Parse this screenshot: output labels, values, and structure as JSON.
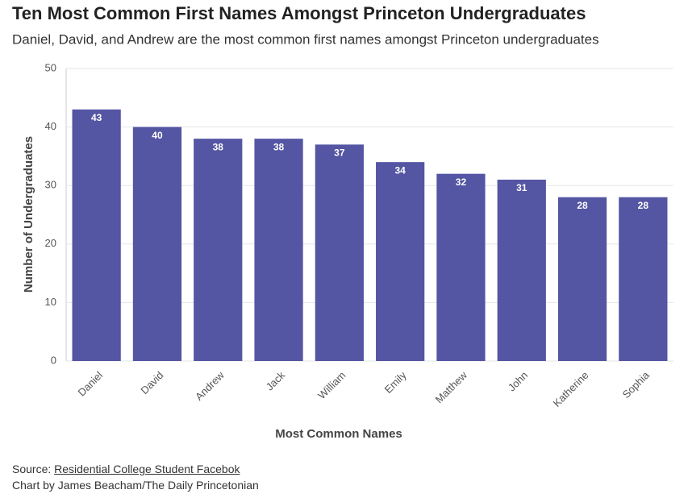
{
  "chart_data": {
    "type": "bar",
    "title": "Ten Most Common First Names Amongst Princeton Undergraduates",
    "subtitle": "Daniel, David, and Andrew are the most common first names amongst Princeton undergraduates",
    "categories": [
      "Daniel",
      "David",
      "Andrew",
      "Jack",
      "William",
      "Emily",
      "Matthew",
      "John",
      "Katherine",
      "Sophia"
    ],
    "values": [
      43,
      40,
      38,
      38,
      37,
      34,
      32,
      31,
      28,
      28
    ],
    "color": "#5455a3",
    "ylim": [
      0,
      50
    ],
    "yticks": [
      0,
      10,
      20,
      30,
      40,
      50
    ],
    "grid": true,
    "xlabel": "Most Common Names",
    "ylabel": "Number of Undergraduates",
    "source_label": "Source:",
    "source": "Residential College Student Facebok",
    "credit": "Chart by James Beacham/The Daily Princetonian"
  }
}
